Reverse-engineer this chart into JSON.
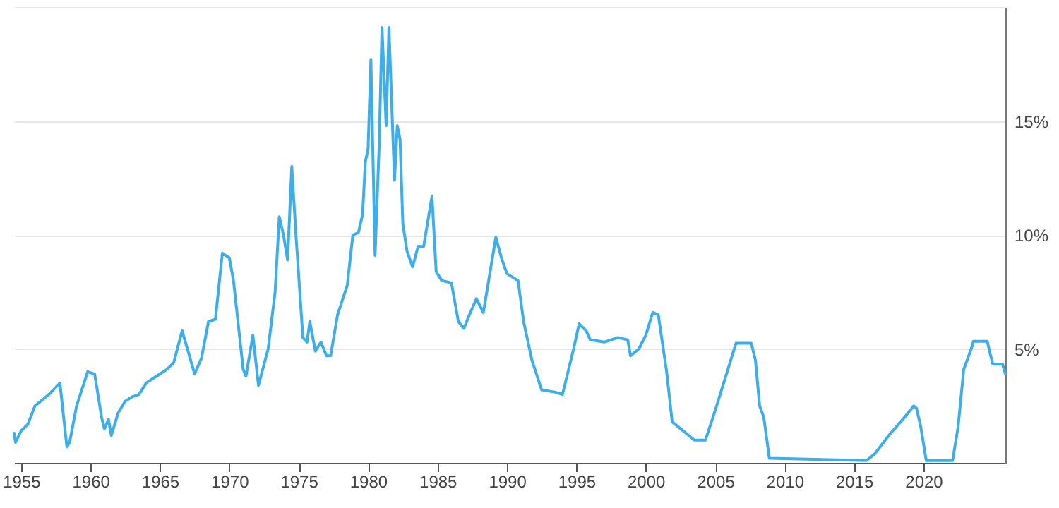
{
  "chart_data": {
    "type": "line",
    "x": [
      1954.5,
      1954.6,
      1955.0,
      1955.5,
      1956.0,
      1956.5,
      1957.0,
      1957.8,
      1958.3,
      1958.5,
      1959.0,
      1959.8,
      1960.3,
      1960.8,
      1961.0,
      1961.3,
      1961.5,
      1962.0,
      1962.5,
      1963.0,
      1963.5,
      1964.0,
      1965.0,
      1965.5,
      1966.0,
      1966.6,
      1967.5,
      1968.0,
      1968.5,
      1969.0,
      1969.5,
      1970.0,
      1970.3,
      1971.0,
      1971.2,
      1971.7,
      1972.1,
      1972.8,
      1973.3,
      1973.6,
      1973.9,
      1974.2,
      1974.5,
      1974.8,
      1975.3,
      1975.6,
      1975.8,
      1976.2,
      1976.6,
      1977.0,
      1977.3,
      1977.8,
      1978.5,
      1978.9,
      1979.3,
      1979.6,
      1979.8,
      1980.0,
      1980.2,
      1980.5,
      1980.8,
      1981.0,
      1981.3,
      1981.5,
      1981.9,
      1982.1,
      1982.3,
      1982.5,
      1982.8,
      1983.2,
      1983.6,
      1984.0,
      1984.6,
      1984.9,
      1985.3,
      1986.0,
      1986.5,
      1986.9,
      1987.3,
      1987.8,
      1988.3,
      1989.2,
      1989.6,
      1990.0,
      1990.8,
      1991.2,
      1991.8,
      1992.5,
      1993.5,
      1994.0,
      1994.8,
      1995.2,
      1995.7,
      1996.0,
      1997.0,
      1998.0,
      1998.7,
      1998.9,
      1999.5,
      2000.0,
      2000.5,
      2000.9,
      2001.5,
      2001.9,
      2002.9,
      2003.5,
      2004.3,
      2005.0,
      2006.5,
      2007.6,
      2007.9,
      2008.2,
      2008.5,
      2008.9,
      2015.9,
      2016.5,
      2017.5,
      2018.5,
      2019.3,
      2019.5,
      2019.8,
      2020.2,
      2022.1,
      2022.5,
      2022.9,
      2023.5,
      2023.6,
      2024.6,
      2024.8,
      2025.0,
      2025.7,
      2025.9
    ],
    "series": [
      {
        "color": "#3daee9",
        "values": [
          1.3,
          0.9,
          1.4,
          1.7,
          2.5,
          2.75,
          3.0,
          3.5,
          0.7,
          0.9,
          2.5,
          4.0,
          3.9,
          2.0,
          1.5,
          1.9,
          1.2,
          2.2,
          2.7,
          2.9,
          3.0,
          3.5,
          3.9,
          4.1,
          4.4,
          5.8,
          3.9,
          4.6,
          6.2,
          6.3,
          9.2,
          9.0,
          8.0,
          4.1,
          3.8,
          5.6,
          3.4,
          5.0,
          7.5,
          10.8,
          10.0,
          8.9,
          13.0,
          10.0,
          5.5,
          5.3,
          6.2,
          4.9,
          5.3,
          4.7,
          4.7,
          6.5,
          7.8,
          10.0,
          10.1,
          10.9,
          13.2,
          13.8,
          17.7,
          9.1,
          14.0,
          19.1,
          14.8,
          19.1,
          12.4,
          14.8,
          14.2,
          10.5,
          9.3,
          8.6,
          9.5,
          9.5,
          11.7,
          8.4,
          8.0,
          7.9,
          6.2,
          5.9,
          6.5,
          7.2,
          6.6,
          9.9,
          9.0,
          8.3,
          8.0,
          6.2,
          4.5,
          3.2,
          3.1,
          3.0,
          5.0,
          6.1,
          5.8,
          5.4,
          5.3,
          5.5,
          5.4,
          4.7,
          5.0,
          5.6,
          6.6,
          6.5,
          4.0,
          1.8,
          1.3,
          1.0,
          1.0,
          2.3,
          5.25,
          5.25,
          4.5,
          2.5,
          2.0,
          0.2,
          0.1,
          0.4,
          1.2,
          1.9,
          2.5,
          2.4,
          1.6,
          0.1,
          0.1,
          1.6,
          4.1,
          5.1,
          5.33,
          5.33,
          4.8,
          4.33,
          4.33,
          3.9
        ]
      }
    ],
    "xlim": [
      1954.5,
      2025.9
    ],
    "xticks": [
      1955,
      1960,
      1965,
      1970,
      1975,
      1980,
      1985,
      1990,
      1995,
      2000,
      2005,
      2010,
      2015,
      2020
    ],
    "ylim": [
      0,
      20
    ],
    "yticks": [
      {
        "value": 5,
        "label": "5%"
      },
      {
        "value": 10,
        "label": "10%"
      },
      {
        "value": 15,
        "label": "15%"
      },
      {
        "value": 20,
        "label": null
      }
    ],
    "grid": "y"
  }
}
